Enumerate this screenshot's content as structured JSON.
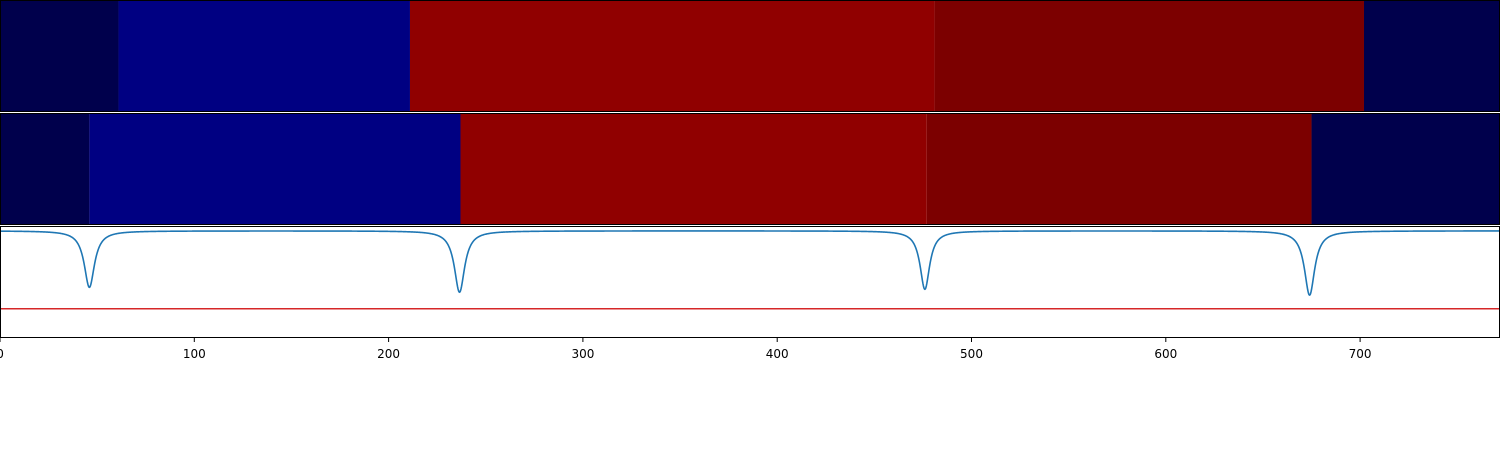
{
  "chart_data": [
    {
      "type": "heatmap",
      "xlim": [
        0,
        772
      ],
      "segments": [
        {
          "start": 0,
          "end": 61,
          "color": "#00004c"
        },
        {
          "start": 61,
          "end": 211,
          "color": "#000082"
        },
        {
          "start": 211,
          "end": 481,
          "color": "#900000"
        },
        {
          "start": 481,
          "end": 702,
          "color": "#7c0000"
        },
        {
          "start": 702,
          "end": 772,
          "color": "#00004c"
        }
      ]
    },
    {
      "type": "heatmap",
      "xlim": [
        0,
        772
      ],
      "segments": [
        {
          "start": 0,
          "end": 46,
          "color": "#00004c"
        },
        {
          "start": 46,
          "end": 237,
          "color": "#000082"
        },
        {
          "start": 237,
          "end": 477,
          "color": "#900000"
        },
        {
          "start": 477,
          "end": 675,
          "color": "#7c0000"
        },
        {
          "start": 675,
          "end": 772,
          "color": "#00004c"
        }
      ]
    },
    {
      "type": "line",
      "xlim": [
        0,
        772
      ],
      "ylim": [
        -1.1,
        0.05
      ],
      "xticks": [
        0,
        100,
        200,
        300,
        400,
        500,
        600,
        700
      ],
      "threshold": {
        "value": -0.8,
        "color": "#d62728"
      },
      "series": [
        {
          "color": "#1f77b4",
          "baseline": 0,
          "dips": [
            {
              "x": 46,
              "depth": -0.58,
              "width": 3.2
            },
            {
              "x": 236.5,
              "depth": -0.63,
              "width": 3.2
            },
            {
              "x": 476,
              "depth": -0.6,
              "width": 3.0
            },
            {
              "x": 674,
              "depth": -0.66,
              "width": 3.2
            }
          ]
        }
      ]
    }
  ]
}
